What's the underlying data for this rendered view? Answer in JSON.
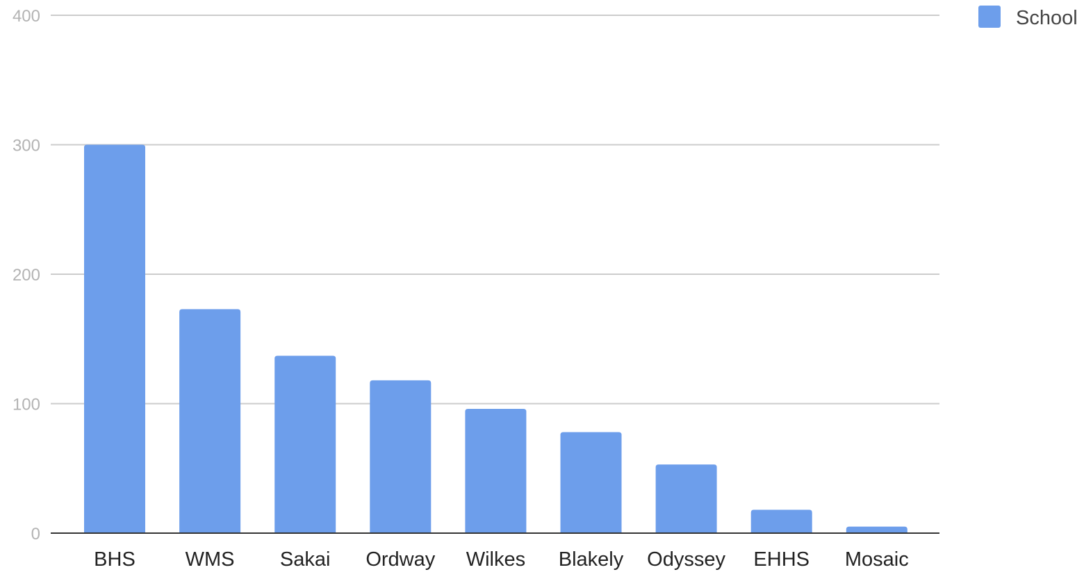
{
  "chart_data": {
    "type": "bar",
    "categories": [
      "BHS",
      "WMS",
      "Sakai",
      "Ordway",
      "Wilkes",
      "Blakely",
      "Odyssey",
      "EHHS",
      "Mosaic"
    ],
    "series": [
      {
        "name": "School",
        "values": [
          300,
          173,
          137,
          118,
          96,
          78,
          53,
          18,
          5
        ],
        "color": "#6d9eeb"
      }
    ],
    "title": "",
    "xlabel": "",
    "ylabel": "",
    "ylim": [
      0,
      400
    ],
    "yticks": [
      0,
      100,
      200,
      300,
      400
    ],
    "grid": true,
    "legend_position": "top-right"
  }
}
